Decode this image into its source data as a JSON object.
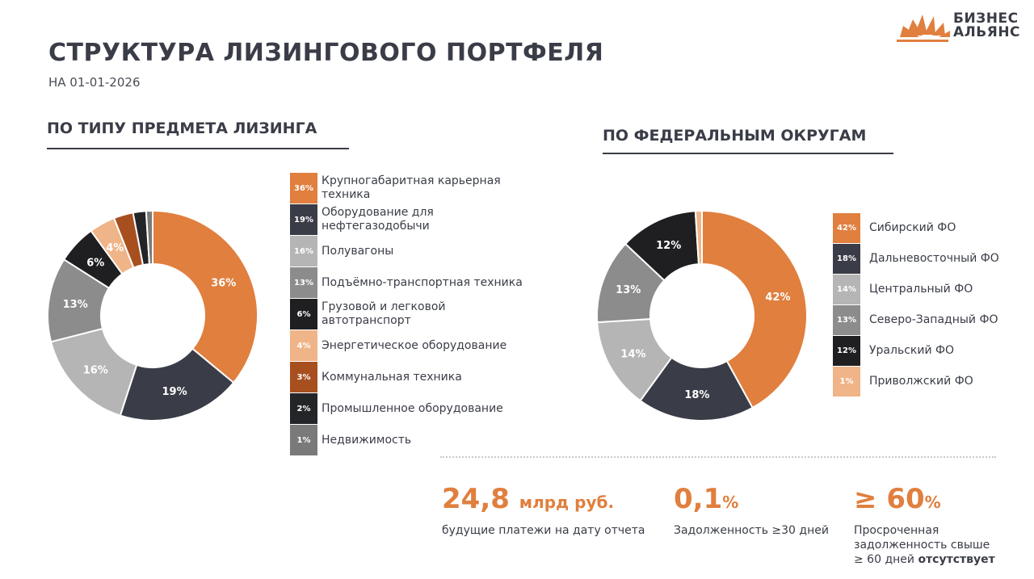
{
  "header": {
    "title": "СТРУКТУРА ЛИЗИНГОВОГО ПОРТФЕЛЯ",
    "date": "НА 01-01-2026"
  },
  "logo": {
    "line1": "БИЗНЕС",
    "line2": "АЛЬЯНС",
    "accent": "#e07f3e"
  },
  "sections": {
    "left_title": "ПО ТИПУ ПРЕДМЕТА ЛИЗИНГА",
    "right_title": "ПО ФЕДЕРАЛЬНЫМ ОКРУГАМ"
  },
  "chart_data": [
    {
      "type": "pie",
      "donut": true,
      "title": "ПО ТИПУ ПРЕДМЕТА ЛИЗИНГА",
      "unit": "%",
      "legend_position": "right",
      "categories": [
        "Крупногабаритная карьерная\nтехника",
        "Оборудование для\nнефтегазодобычи",
        "Полувагоны",
        "Подъёмно-транспортная техника",
        "Грузовой и легковой\nавтотранспорт",
        "Энергетическое оборудование",
        "Коммунальная техника",
        "Промышленное оборудование",
        "Недвижимость"
      ],
      "values": [
        36,
        19,
        16,
        13,
        6,
        4,
        3,
        2,
        1
      ],
      "colors": [
        "#e07f3e",
        "#3a3d47",
        "#b5b5b5",
        "#8c8c8c",
        "#1f1f22",
        "#efb488",
        "#a84f20",
        "#232529",
        "#7a7a7a"
      ],
      "slice_labels": [
        "36%",
        "19%",
        "16%",
        "13%",
        "6%",
        "4%",
        "",
        "",
        ""
      ],
      "legend_badges": [
        "36%",
        "19%",
        "16%",
        "13%",
        "6%",
        "4%",
        "3%",
        "2%",
        "1%"
      ]
    },
    {
      "type": "pie",
      "donut": true,
      "title": "ПО ФЕДЕРАЛЬНЫМ ОКРУГАМ",
      "unit": "%",
      "legend_position": "right",
      "categories": [
        "Сибирский ФО",
        "Дальневосточный ФО",
        "Центральный ФО",
        "Северо-Западный ФО",
        "Уральский ФО",
        "Приволжский ФО"
      ],
      "values": [
        42,
        18,
        14,
        13,
        12,
        1
      ],
      "colors": [
        "#e07f3e",
        "#3a3d47",
        "#b5b5b5",
        "#8c8c8c",
        "#1f1f22",
        "#efb488"
      ],
      "slice_labels": [
        "42%",
        "18%",
        "14%",
        "13%",
        "12%",
        ""
      ],
      "legend_badges": [
        "42%",
        "18%",
        "14%",
        "13%",
        "12%",
        "1%"
      ]
    }
  ],
  "stats": [
    {
      "value": "24,8",
      "unit": "млрд руб.",
      "caption": "будущие платежи на дату отчета"
    },
    {
      "value": "0,1",
      "unit": "%",
      "caption": "Задолженность ≥30 дней"
    },
    {
      "value": "≥ 60",
      "unit": "%",
      "caption_lines": [
        "Просроченная",
        "задолженность свыше"
      ],
      "caption_tail": "≥ 60 дней",
      "caption_bold": "отсутствует"
    }
  ]
}
